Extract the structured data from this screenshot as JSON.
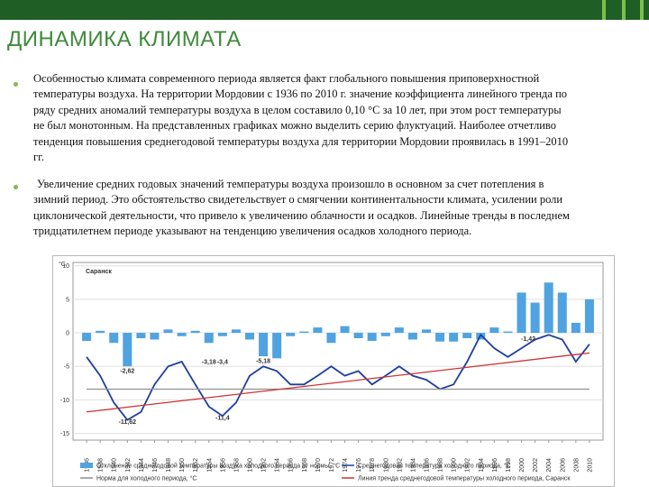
{
  "header": {
    "title": "ДИНАМИКА КЛИМАТА"
  },
  "bullets": [
    "Особенностью климата современного периода является факт глобального повышения приповерхностной температуры воздуха. На территории Мордовии с 1936 по 2010 г. значение коэффициента линейного тренда по ряду средних аномалий температуры воздуха в целом составило 0,10 °С за 10 лет, при этом рост температуры не был монотонным. На представленных графиках можно выделить серию флуктуаций. Наиболее отчетливо тенденция повышения среднегодовой температуры воздуха для территории Мордовии проявилась в 1991–2010 гг.",
    "Увеличение средних годовых значений температуры воздуха произошло в основном за счет потепления в зимний период. Это обстоятельство свидетельствует о смягчении континентальности климата, усилении роли циклонической деятельности, что привело к увеличению облачности и осадков. Линейные тренды в последнем тридцатилетнем периоде указывают на тенденцию увеличения осадков холодного периода."
  ],
  "chart_data": {
    "type": "bar-line",
    "location": "Саранск",
    "y_unit": "°С",
    "x": [
      1936,
      1938,
      1940,
      1942,
      1944,
      1946,
      1948,
      1950,
      1952,
      1954,
      1956,
      1958,
      1960,
      1962,
      1964,
      1966,
      1968,
      1970,
      1972,
      1974,
      1976,
      1978,
      1980,
      1982,
      1984,
      1986,
      1988,
      1990,
      1992,
      1994,
      1996,
      1998,
      2000,
      2002,
      2004,
      2006,
      2008,
      2010
    ],
    "xlim": [
      1934,
      2012
    ],
    "xticks": [
      1936,
      1938,
      1940,
      1942,
      1944,
      1946,
      1948,
      1950,
      1952,
      1954,
      1956,
      1958,
      1960,
      1962,
      1964,
      1966,
      1968,
      1970,
      1972,
      1974,
      1976,
      1978,
      1980,
      1982,
      1984,
      1986,
      1988,
      1990,
      1992,
      1994,
      1996,
      1998,
      2000,
      2002,
      2004,
      2006,
      2008,
      2010
    ],
    "ylim": [
      -16,
      10.5
    ],
    "yticks": [
      10,
      5,
      0,
      -5,
      -10,
      -15
    ],
    "grid": true,
    "series": [
      {
        "name": "Отклонение среднегодовой температуры воздуха холодного периода от нормы, °С",
        "kind": "bar",
        "color": "#4fa3e0",
        "values": [
          -1.2,
          0.3,
          -1.5,
          -5,
          -0.8,
          -1.0,
          0.5,
          -0.5,
          0.3,
          -1.5,
          -0.5,
          0.5,
          -1,
          -3.5,
          -3.8,
          -0.5,
          0.2,
          0.8,
          -1.5,
          1,
          -0.8,
          -1.2,
          -0.5,
          0.8,
          -1,
          0.5,
          -1.3,
          -1.3,
          -0.8,
          -1,
          0.8,
          0.2,
          6,
          4.5,
          7.5,
          6,
          1.5,
          5
        ]
      },
      {
        "name": "Среднегодовая температура холодного периода, °С",
        "kind": "line",
        "color": "#1f3f9e",
        "values": [
          -3.6,
          -6.4,
          -10.4,
          -13,
          -11.8,
          -7.7,
          -5,
          -4.3,
          -7.7,
          -11,
          -12.4,
          -10.4,
          -6.4,
          -5,
          -5.7,
          -7.7,
          -7.7,
          -6.4,
          -5,
          -6.4,
          -5.7,
          -7.7,
          -6.4,
          -5,
          -6.4,
          -7,
          -8.4,
          -7.7,
          -4.3,
          -0.3,
          -2.3,
          -3.6,
          -2.3,
          -1,
          -0.3,
          -1,
          -4.3,
          -1.7
        ]
      },
      {
        "name": "Норма для холодного периода, °С",
        "kind": "line",
        "color": "#909090",
        "x": [
          1936,
          2010
        ],
        "values": [
          -8.4,
          -8.4
        ]
      },
      {
        "name": "Линия тренда среднегодовой температуры холодного периода, Саранск",
        "kind": "line",
        "color": "#d03030",
        "x": [
          1936,
          2010
        ],
        "values": [
          -11.8,
          -3
        ]
      }
    ],
    "annotations": [
      {
        "text": "-2,62",
        "x": 1942,
        "y": -6
      },
      {
        "text": "-11,62",
        "x": 1942,
        "y": -13.6
      },
      {
        "text": "-3,18",
        "x": 1954,
        "y": -4.6
      },
      {
        "text": "-3,4",
        "x": 1956,
        "y": -4.6
      },
      {
        "text": "-11,4",
        "x": 1956,
        "y": -13
      },
      {
        "text": "-5,18",
        "x": 1962,
        "y": -4.5
      },
      {
        "text": "-1,42",
        "x": 2001,
        "y": -1.2
      }
    ]
  }
}
